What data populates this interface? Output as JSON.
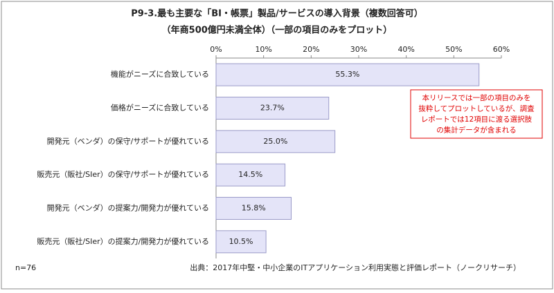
{
  "chart_data": {
    "type": "bar",
    "orientation": "horizontal",
    "title": "P9-3.最も主要な「BI・帳票」製品/サービスの導入背景（複数回答可）",
    "subtitle": "（年商500億円未満全体）（一部の項目のみをプロット）",
    "categories": [
      "機能がニーズに合致している",
      "価格がニーズに合致している",
      "開発元（ベンダ）の保守/サポートが優れている",
      "販売元（販社/SIer）の保守/サポートが優れている",
      "開発元（ベンダ）の提案力/開発力が優れている",
      "販売元（販社/SIer）の提案力/開発力が優れている"
    ],
    "values": [
      55.3,
      23.7,
      25.0,
      14.5,
      15.8,
      10.5
    ],
    "value_labels": [
      "55.3%",
      "23.7%",
      "25.0%",
      "14.5%",
      "15.8%",
      "10.5%"
    ],
    "color": "#e4e4f8",
    "xlim": [
      0,
      60
    ],
    "xticks": [
      {
        "value": 0,
        "label": "0%"
      },
      {
        "value": 10,
        "label": "10%"
      },
      {
        "value": 20,
        "label": "20%"
      },
      {
        "value": 30,
        "label": "30%"
      },
      {
        "value": 40,
        "label": "40%"
      },
      {
        "value": 50,
        "label": "50%"
      },
      {
        "value": 60,
        "label": "60%"
      }
    ],
    "grid": false,
    "annotation": [
      "本リリースでは一部の項目のみを",
      "抜粋してプロットしているが、調査",
      "レポートでは12項目に渡る選択肢",
      "の集計データが含まれる"
    ],
    "note": "n=76",
    "source": "出典：2017年中堅・中小企業のITアプリケーション利用実態と評価レポート（ノークリサーチ）"
  }
}
